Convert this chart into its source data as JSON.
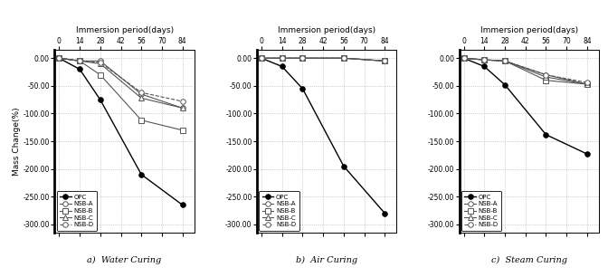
{
  "x": [
    0,
    14,
    28,
    42,
    56,
    70,
    84
  ],
  "subplot_titles": [
    "Immersion period(days)",
    "Immersion period(days)",
    "Immersion period(days)"
  ],
  "subplot_labels": [
    "a)  Water Curing",
    "b)  Air Curing",
    "c)  Steam Curing"
  ],
  "ylabel": "Mass Change(%)",
  "yticks": [
    0.0,
    -50.0,
    -100.0,
    -150.0,
    -200.0,
    -250.0,
    -300.0
  ],
  "ylim": [
    -315,
    15
  ],
  "xlim": [
    -3,
    92
  ],
  "xticks": [
    0,
    14,
    28,
    42,
    56,
    70,
    84
  ],
  "legend_labels": [
    "OPC",
    "NSB-A",
    "NSB-B",
    "NSB-C",
    "NSB-D"
  ],
  "water": {
    "OPC": [
      0,
      -20,
      -75,
      null,
      -210,
      null,
      -265
    ],
    "NSB-A": [
      0,
      -5,
      -5,
      null,
      -65,
      null,
      -90
    ],
    "NSB-B": [
      0,
      -5,
      -30,
      null,
      -112,
      null,
      -130
    ],
    "NSB-C": [
      0,
      -5,
      -10,
      null,
      -72,
      null,
      -90
    ],
    "NSB-D": [
      0,
      -4,
      -8,
      null,
      -62,
      null,
      -78
    ]
  },
  "air": {
    "OPC": [
      0,
      -15,
      -55,
      null,
      -195,
      null,
      -280
    ],
    "NSB-A": [
      0,
      0,
      0,
      null,
      0,
      null,
      -5
    ],
    "NSB-B": [
      0,
      0,
      0,
      null,
      0,
      null,
      -5
    ],
    "NSB-C": [
      0,
      0,
      0,
      null,
      0,
      null,
      -5
    ],
    "NSB-D": [
      0,
      0,
      0,
      null,
      0,
      null,
      -5
    ]
  },
  "steam": {
    "OPC": [
      0,
      -15,
      -48,
      null,
      -138,
      null,
      -173
    ],
    "NSB-A": [
      0,
      -3,
      -5,
      null,
      -30,
      null,
      -47
    ],
    "NSB-B": [
      0,
      -3,
      -5,
      null,
      -40,
      null,
      -47
    ],
    "NSB-C": [
      0,
      -3,
      -5,
      null,
      -34,
      null,
      -47
    ],
    "NSB-D": [
      0,
      -3,
      -5,
      null,
      -30,
      null,
      -44
    ]
  },
  "series_styles": {
    "OPC": {
      "color": "#000000",
      "marker": "o",
      "ms": 4,
      "mfc": "#000000",
      "lw": 1.0,
      "ls": "-"
    },
    "NSB-A": {
      "color": "#555555",
      "marker": "o",
      "ms": 4,
      "mfc": "#ffffff",
      "lw": 0.8,
      "ls": "-"
    },
    "NSB-B": {
      "color": "#555555",
      "marker": "s",
      "ms": 4,
      "mfc": "#ffffff",
      "lw": 0.8,
      "ls": "-"
    },
    "NSB-C": {
      "color": "#555555",
      "marker": "^",
      "ms": 4,
      "mfc": "#ffffff",
      "lw": 0.8,
      "ls": "-"
    },
    "NSB-D": {
      "color": "#555555",
      "marker": "o",
      "ms": 4,
      "mfc": "#ffffff",
      "lw": 0.8,
      "ls": "--"
    }
  },
  "figsize": [
    6.72,
    3.06
  ],
  "dpi": 100
}
